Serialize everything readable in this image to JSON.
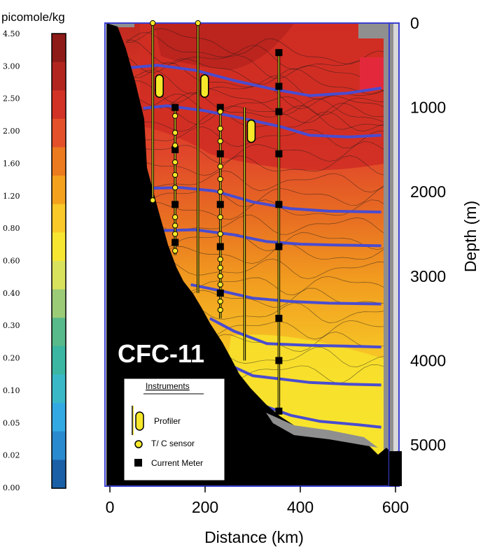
{
  "chart_data": {
    "type": "heatmap",
    "title": "CFC-11",
    "xlabel": "Distance (km)",
    "ylabel": "Depth (m)",
    "xlim": [
      0,
      600
    ],
    "ylim": [
      0,
      5000
    ],
    "y_inverted": true,
    "x_ticks": [
      "0",
      "200",
      "400",
      "600"
    ],
    "y_ticks": [
      "0",
      "1000",
      "2000",
      "3000",
      "4000",
      "5000"
    ],
    "colorbar": {
      "label": "picomole/kg",
      "ticks": [
        "0.00",
        "0.02",
        "0.05",
        "0.10",
        "0.20",
        "0.30",
        "0.40",
        "0.60",
        "0.80",
        "1.20",
        "1.60",
        "2.00",
        "2.50",
        "3.00",
        "4.50"
      ],
      "colors": [
        "#1b5fa6",
        "#2a8ad0",
        "#33a9e3",
        "#39b9c8",
        "#3bb6a2",
        "#58b98a",
        "#9ccb78",
        "#d8e25c",
        "#f6e632",
        "#f8c928",
        "#f4a21e",
        "#ec7a1e",
        "#e4502a",
        "#d23226",
        "#b2251f",
        "#8e1b18"
      ]
    },
    "isopycnal_depths_m": [
      {
        "x": [
          40,
          100,
          180,
          260,
          340,
          420,
          500,
          570
        ],
        "y": [
          530,
          500,
          560,
          680,
          780,
          860,
          830,
          770
        ]
      },
      {
        "x": [
          70,
          120,
          200,
          280,
          360,
          420,
          500,
          570
        ],
        "y": [
          1010,
          980,
          1040,
          1130,
          1230,
          1330,
          1350,
          1330
        ]
      },
      {
        "x": [
          70,
          150,
          220,
          300,
          380,
          460,
          570
        ],
        "y": [
          1960,
          1950,
          1990,
          2120,
          2200,
          2230,
          2240
        ]
      },
      {
        "x": [
          100,
          180,
          260,
          330,
          400,
          470,
          570
        ],
        "y": [
          2460,
          2450,
          2510,
          2590,
          2620,
          2630,
          2640
        ]
      },
      {
        "x": [
          170,
          230,
          300,
          380,
          460,
          570
        ],
        "y": [
          3100,
          3170,
          3260,
          3300,
          3320,
          3330
        ]
      },
      {
        "x": [
          210,
          260,
          330,
          420,
          500,
          570
        ],
        "y": [
          3500,
          3650,
          3800,
          3820,
          3830,
          3840
        ]
      },
      {
        "x": [
          250,
          300,
          360,
          420,
          500,
          570
        ],
        "y": [
          4050,
          4180,
          4220,
          4260,
          4280,
          4290
        ]
      },
      {
        "x": [
          330,
          380,
          440,
          520,
          570
        ],
        "y": [
          4550,
          4650,
          4720,
          4760,
          4790
        ]
      }
    ],
    "moorings": [
      {
        "type": "profiler",
        "x": 90,
        "top": 0,
        "bottom": 2100,
        "sensor_depths": [
          0,
          2100
        ]
      },
      {
        "type": "profiler",
        "x": 185,
        "top": 0,
        "bottom": 3200,
        "sensor_depths": [
          0
        ]
      },
      {
        "type": "profiler",
        "x": 283,
        "top": 1000,
        "bottom": 4000,
        "sensor_depths": []
      },
      {
        "type": "tc_chain",
        "x": 137,
        "top": 1000,
        "bottom": 2750,
        "current_meters": [
          1000,
          1500,
          2150,
          2600
        ],
        "sensor_depths": [
          1100,
          1300,
          1450,
          1650,
          1800,
          1950,
          2300,
          2400,
          2500,
          2700
        ]
      },
      {
        "type": "tc_chain",
        "x": 232,
        "top": 1000,
        "bottom": 3500,
        "current_meters": [
          1000,
          1550,
          2150,
          2650,
          3200
        ],
        "sensor_depths": [
          1050,
          1250,
          1400,
          1700,
          1850,
          2000,
          2300,
          2500,
          2800,
          2900,
          3000,
          3100,
          3300,
          3400
        ]
      },
      {
        "type": "tc_chain",
        "x": 355,
        "top": 350,
        "bottom": 4600,
        "current_meters": [
          350,
          750,
          1050,
          1550,
          2150,
          2650,
          3500,
          4000,
          4600
        ],
        "sensor_depths": []
      }
    ],
    "legend": {
      "title": "Instruments",
      "items": [
        "Profiler",
        "T/ C sensor",
        "Current Meter"
      ]
    },
    "colors": {
      "bottom": "#000000",
      "frame": "#3a3fd0",
      "isopycnal": "#4a4cd0",
      "gap": "#8f8f8f",
      "instrument_yellow": "#f7e92a"
    }
  }
}
